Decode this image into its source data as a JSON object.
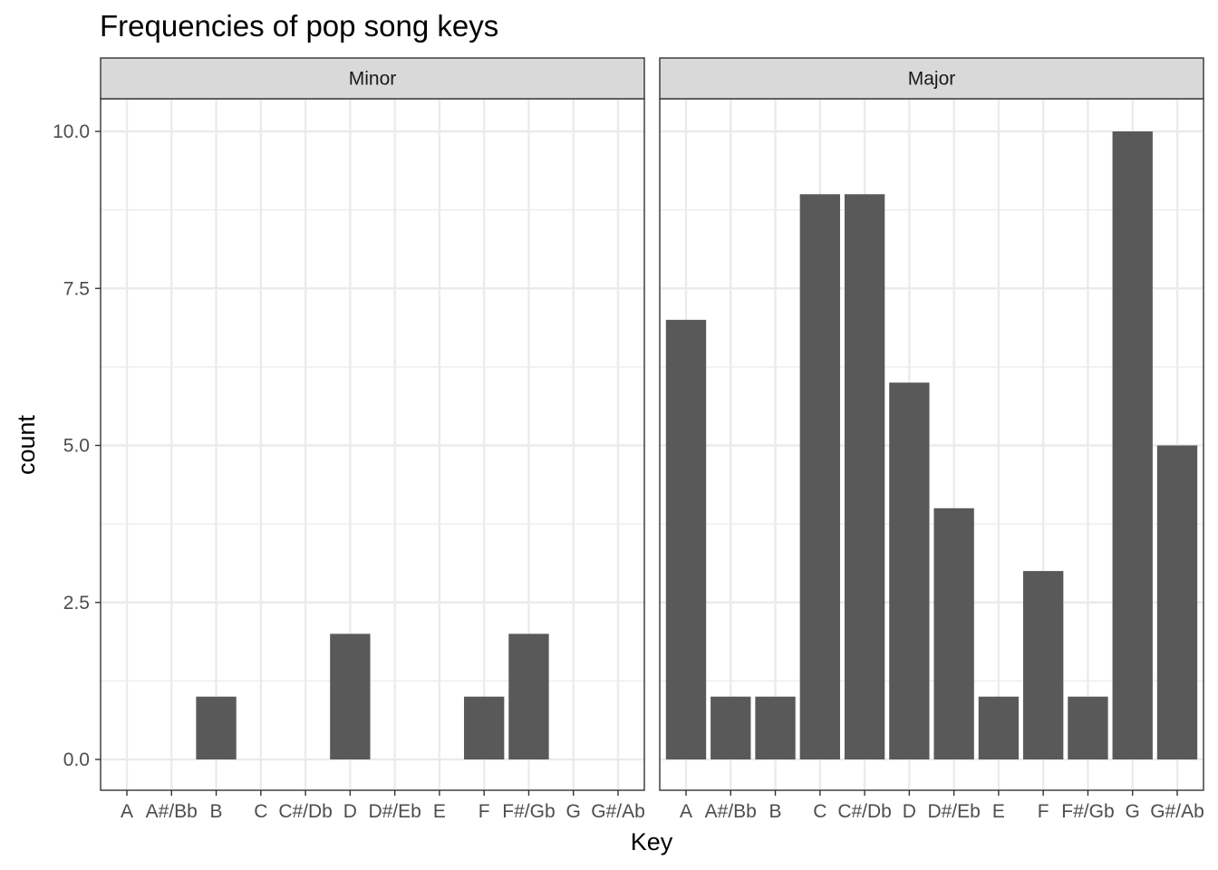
{
  "chart_data": {
    "type": "bar",
    "title": "Frequencies of pop song keys",
    "xlabel": "Key",
    "ylabel": "count",
    "ylim": [
      -0.5,
      10.5
    ],
    "yticks": [
      "0.0",
      "2.5",
      "5.0",
      "7.5",
      "10.0"
    ],
    "ytick_values": [
      0,
      2.5,
      5,
      7.5,
      10
    ],
    "categories": [
      "A",
      "A#/Bb",
      "B",
      "C",
      "C#/Db",
      "D",
      "D#/Eb",
      "E",
      "F",
      "F#/Gb",
      "G",
      "G#/Ab"
    ],
    "facets": [
      {
        "label": "Minor",
        "values": [
          0,
          0,
          1,
          0,
          0,
          2,
          0,
          0,
          1,
          2,
          0,
          0
        ]
      },
      {
        "label": "Major",
        "values": [
          7,
          1,
          1,
          9,
          9,
          6,
          4,
          1,
          3,
          1,
          10,
          5
        ]
      }
    ],
    "grid": true,
    "colors": {
      "bar": "#595959",
      "strip_fill": "#d9d9d9",
      "grid": "#ebebeb",
      "panel_border": "#333333"
    }
  }
}
